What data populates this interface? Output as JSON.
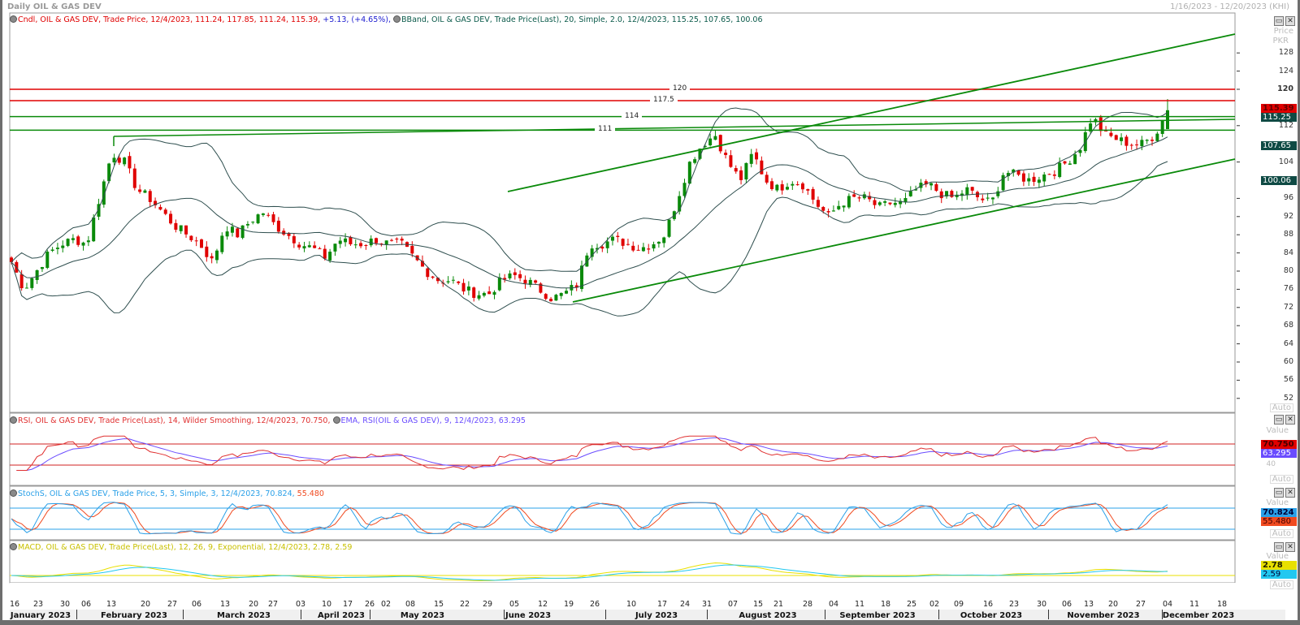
{
  "window": {
    "title": "Daily OIL & GAS DEV",
    "date_range": "1/16/2023 - 12/20/2023 (KHI)"
  },
  "price_panel": {
    "legend_cndl": "Cndl, OIL & GAS DEV, Trade Price,  12/4/2023,  111.24,  117.85,  111.24,  115.39,",
    "legend_change": " +5.13,  (+4.65%),",
    "legend_bband": "BBand, OIL & GAS DEV, Trade Price(Last),  20, Simple, 2.0,  12/4/2023,  115.25,  107.65,  100.06",
    "axis_title": "Price",
    "axis_unit": "PKR",
    "axis_ticks": [
      "128",
      "124",
      "120",
      "112",
      "104",
      "96",
      "92",
      "88",
      "84",
      "80",
      "76",
      "72",
      "68",
      "64",
      "60",
      "56",
      "52"
    ],
    "last_price": "115.39",
    "bb_mid": "115.25",
    "bb_upper": "107.65",
    "bb_lower": "100.06",
    "hlines": [
      {
        "label": "120",
        "value": 120,
        "color": "#e00000"
      },
      {
        "label": "117.5",
        "value": 117.5,
        "color": "#e00000"
      },
      {
        "label": "114",
        "value": 114,
        "color": "#0a8a0a"
      },
      {
        "label": "111",
        "value": 111,
        "color": "#0a8a0a"
      }
    ],
    "auto": "Auto"
  },
  "rsi_panel": {
    "legend_rsi": "RSI, OIL & GAS DEV, Trade Price(Last),  14, Wilder Smoothing,  12/4/2023,  70.750,",
    "legend_ema": "EMA, RSI(OIL & GAS DEV),  9,  12/4/2023,  63.295",
    "axis_title": "Value",
    "axis_unit": "PKR",
    "rsi_value": "70.750",
    "ema_value": "63.295",
    "tick_40": "40",
    "auto": "Auto"
  },
  "stoch_panel": {
    "legend_k": "StochS, OIL & GAS DEV, Trade Price,  5, 3, Simple, 3,  12/4/2023,  70.824,",
    "legend_d": " 55.480",
    "axis_title": "Value",
    "k_value": "70.824",
    "d_value": "55.480",
    "auto": "Auto"
  },
  "macd_panel": {
    "legend": "MACD, OIL & GAS DEV, Trade Price(Last),  12, 26, 9, Exponential,  12/4/2023,  2.78,  2.59",
    "axis_title": "Value",
    "macd_value": "2.78",
    "signal_value": "2.59",
    "auto": "Auto"
  },
  "colors": {
    "up": "#0a8a0a",
    "down": "#e00000",
    "rsi": "#e03030",
    "ema": "#6a4cff",
    "stoch_k": "#2aa0e8",
    "stoch_d": "#f04a20",
    "macd": "#e8e000",
    "signal": "#22c8f0"
  },
  "x_axis": {
    "ticks": [
      "16",
      "23",
      "30",
      "06",
      "13",
      "20",
      "27",
      "06",
      "13",
      "20",
      "27",
      "03",
      "10",
      "17",
      "26",
      "02",
      "08",
      "15",
      "22",
      "29",
      "05",
      "12",
      "19",
      "26",
      "10",
      "17",
      "24",
      "31",
      "07",
      "15",
      "21",
      "28",
      "04",
      "11",
      "18",
      "25",
      "02",
      "09",
      "16",
      "23",
      "30",
      "06",
      "13",
      "20",
      "27",
      "04",
      "11",
      "18"
    ],
    "months": [
      "January 2023",
      "February 2023",
      "March 2023",
      "April 2023",
      "May 2023",
      "June 2023",
      "July 2023",
      "August 2023",
      "September 2023",
      "October 2023",
      "November 2023",
      "December 2023"
    ]
  },
  "chart_data": {
    "type": "candlestick",
    "title": "Daily OIL & GAS DEV",
    "ylabel": "Price PKR",
    "ylim": [
      50,
      132
    ],
    "period": "1/16/2023 - 12/4/2023",
    "last_bar": {
      "date": "12/4/2023",
      "open": 111.24,
      "high": 117.85,
      "low": 111.24,
      "close": 115.39
    },
    "closes": [
      82,
      76,
      80,
      84,
      86,
      87,
      86,
      96,
      106,
      104,
      98,
      96,
      93,
      90,
      88,
      86,
      82,
      90,
      88,
      91,
      93,
      90,
      88,
      86,
      85,
      83,
      87,
      86,
      86,
      87,
      86,
      86,
      83,
      80,
      78,
      78,
      76,
      75,
      75,
      78,
      79,
      78,
      76,
      74,
      75,
      77,
      86,
      86,
      87,
      86,
      85,
      86,
      88,
      96,
      104,
      108,
      110,
      104,
      100,
      106,
      100,
      98,
      100,
      99,
      95,
      92,
      95,
      96,
      96,
      94,
      95,
      95,
      98,
      99,
      97,
      96,
      98,
      96,
      95,
      102,
      101,
      100,
      101,
      102,
      104,
      107,
      114,
      110,
      109,
      108,
      108,
      110,
      115.39
    ]
  }
}
